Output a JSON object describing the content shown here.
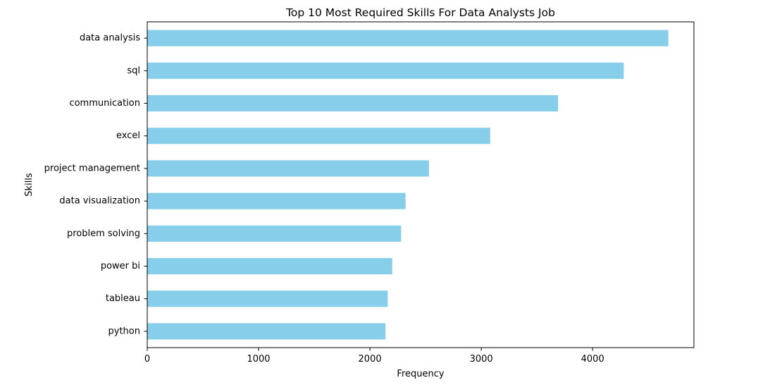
{
  "chart_data": {
    "type": "bar",
    "orientation": "horizontal",
    "title": "Top 10 Most Required Skills For Data Analysts Job",
    "xlabel": "Frequency",
    "ylabel": "Skills",
    "categories": [
      "data analysis",
      "sql",
      "communication",
      "excel",
      "project management",
      "data visualization",
      "problem solving",
      "power bi",
      "tableau",
      "python"
    ],
    "values": [
      4680,
      4280,
      3690,
      3080,
      2530,
      2320,
      2280,
      2200,
      2160,
      2140
    ],
    "xlim": [
      0,
      4910
    ],
    "xticks": [
      0,
      1000,
      2000,
      3000,
      4000
    ],
    "xtick_labels": [
      "0",
      "1000",
      "2000",
      "3000",
      "4000"
    ],
    "grid": false,
    "legend": "none",
    "bar_color": "#87ceeb"
  }
}
